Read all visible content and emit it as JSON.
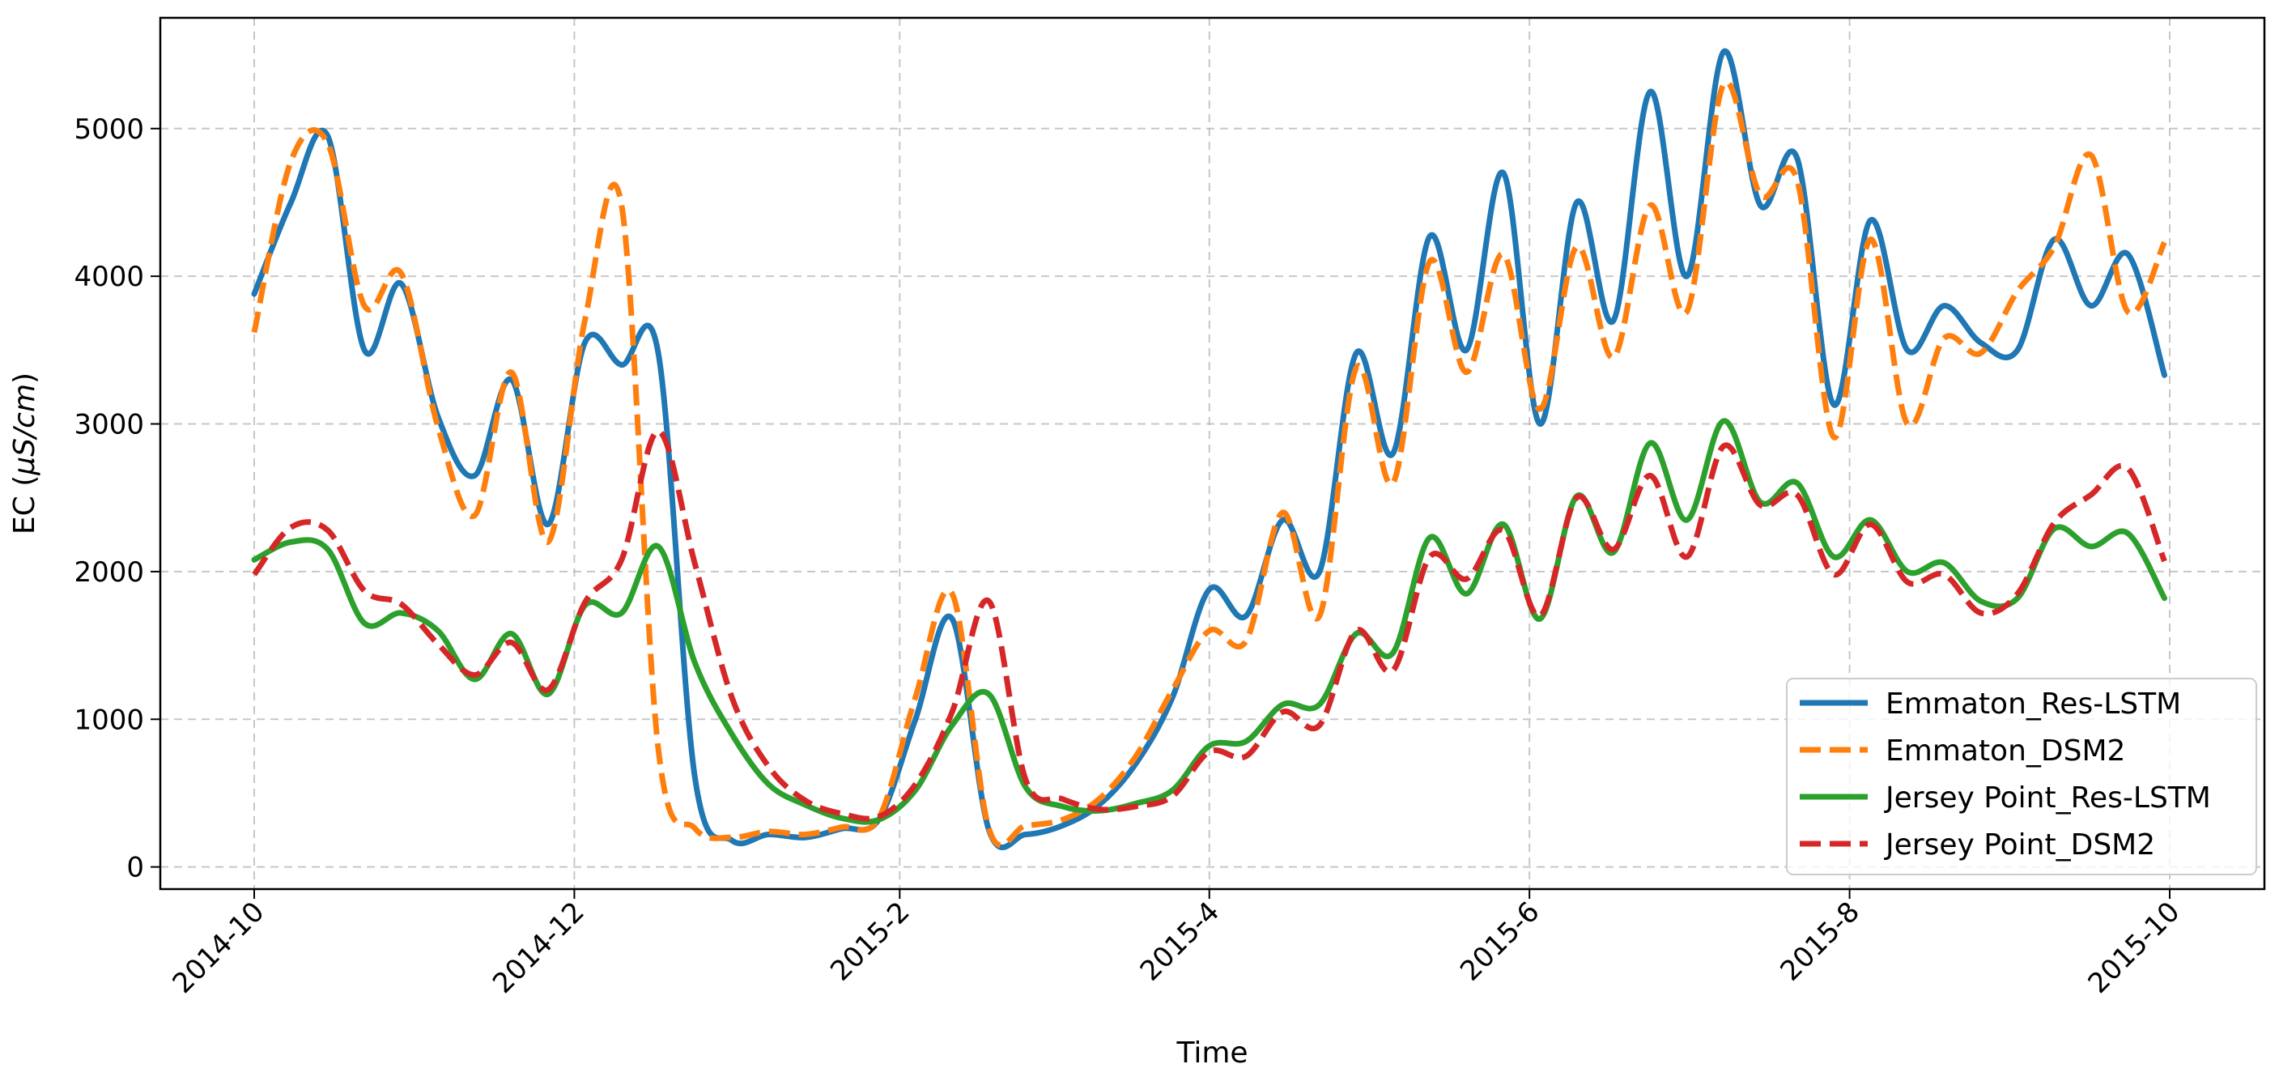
{
  "chart_data": {
    "type": "line",
    "title": "",
    "xlabel": "Time",
    "ylabel": "EC (μS/cm)",
    "ylabel_parts": {
      "prefix": "EC (",
      "italic": "μS/cm",
      "suffix": ")"
    },
    "x_ticks": [
      "2014-10",
      "2014-12",
      "2015-2",
      "2015-4",
      "2015-6",
      "2015-8",
      "2015-10"
    ],
    "x_range": [
      "2014-10-01",
      "2015-10-01"
    ],
    "y_ticks": [
      0,
      1000,
      2000,
      3000,
      4000,
      5000
    ],
    "ylim": [
      -150,
      5750
    ],
    "grid": true,
    "legend_position": "lower-right",
    "x": [
      "2014-10-01",
      "2014-10-08",
      "2014-10-15",
      "2014-10-22",
      "2014-10-29",
      "2014-11-05",
      "2014-11-12",
      "2014-11-19",
      "2014-11-26",
      "2014-12-03",
      "2014-12-10",
      "2014-12-17",
      "2014-12-24",
      "2014-12-31",
      "2015-01-07",
      "2015-01-14",
      "2015-01-21",
      "2015-01-28",
      "2015-02-04",
      "2015-02-11",
      "2015-02-18",
      "2015-02-25",
      "2015-03-04",
      "2015-03-11",
      "2015-03-18",
      "2015-03-25",
      "2015-04-01",
      "2015-04-08",
      "2015-04-15",
      "2015-04-22",
      "2015-04-29",
      "2015-05-06",
      "2015-05-13",
      "2015-05-20",
      "2015-05-27",
      "2015-06-03",
      "2015-06-10",
      "2015-06-17",
      "2015-06-24",
      "2015-07-01",
      "2015-07-08",
      "2015-07-15",
      "2015-07-22",
      "2015-07-29",
      "2015-08-05",
      "2015-08-12",
      "2015-08-19",
      "2015-08-26",
      "2015-09-02",
      "2015-09-09",
      "2015-09-16",
      "2015-09-23",
      "2015-09-30"
    ],
    "series": [
      {
        "name": "Emmaton_Res-LSTM",
        "color": "#1f77b4",
        "dash": "solid",
        "values": [
          3880,
          4500,
          4950,
          3500,
          3950,
          3050,
          2650,
          3300,
          2320,
          3550,
          3400,
          3480,
          600,
          180,
          220,
          200,
          260,
          320,
          1000,
          1680,
          250,
          220,
          280,
          420,
          700,
          1150,
          1880,
          1700,
          2350,
          2000,
          3480,
          2800,
          4270,
          3500,
          4700,
          3000,
          4500,
          3700,
          5250,
          4000,
          5520,
          4480,
          4800,
          3130,
          4380,
          3500,
          3800,
          3550,
          3500,
          4250,
          3800,
          4150,
          3330
        ]
      },
      {
        "name": "Emmaton_DSM2",
        "color": "#ff7f0e",
        "dash": "dashed",
        "values": [
          3620,
          4780,
          4900,
          3800,
          4020,
          2980,
          2380,
          3350,
          2200,
          3700,
          4480,
          800,
          260,
          200,
          240,
          220,
          270,
          330,
          1150,
          1850,
          260,
          280,
          320,
          460,
          750,
          1200,
          1600,
          1530,
          2400,
          1700,
          3380,
          2600,
          4100,
          3350,
          4150,
          3100,
          4200,
          3450,
          4480,
          3760,
          5300,
          4550,
          4650,
          2910,
          4250,
          3000,
          3580,
          3480,
          3900,
          4200,
          4820,
          3760,
          4230
        ]
      },
      {
        "name": "Jersey Point_Res-LSTM",
        "color": "#2ca02c",
        "dash": "solid",
        "values": [
          2080,
          2200,
          2150,
          1650,
          1720,
          1600,
          1270,
          1580,
          1170,
          1770,
          1720,
          2170,
          1380,
          900,
          560,
          420,
          330,
          320,
          520,
          960,
          1170,
          540,
          410,
          380,
          430,
          520,
          820,
          850,
          1100,
          1100,
          1580,
          1450,
          2230,
          1850,
          2320,
          1680,
          2510,
          2130,
          2870,
          2350,
          3020,
          2470,
          2600,
          2100,
          2350,
          2000,
          2060,
          1800,
          1820,
          2290,
          2170,
          2260,
          1820
        ]
      },
      {
        "name": "Jersey Point_DSM2",
        "color": "#d62728",
        "dash": "dashed",
        "values": [
          1980,
          2300,
          2280,
          1870,
          1780,
          1510,
          1300,
          1520,
          1200,
          1790,
          2080,
          2950,
          2050,
          1150,
          680,
          450,
          360,
          340,
          560,
          1050,
          1800,
          590,
          460,
          390,
          410,
          480,
          780,
          750,
          1050,
          960,
          1600,
          1330,
          2100,
          1950,
          2280,
          1700,
          2500,
          2150,
          2650,
          2100,
          2850,
          2450,
          2520,
          1980,
          2320,
          1930,
          1980,
          1720,
          1850,
          2330,
          2520,
          2700,
          2070
        ]
      }
    ]
  }
}
